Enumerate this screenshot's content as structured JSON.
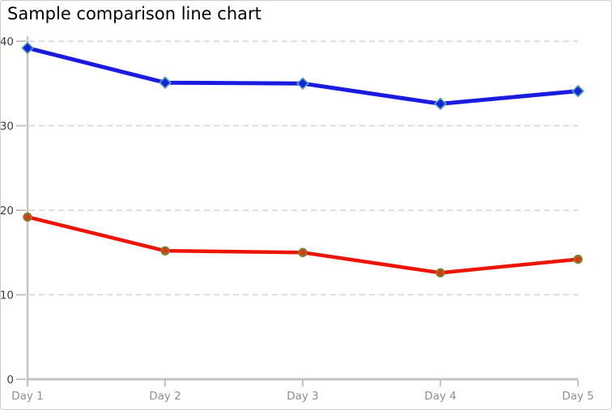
{
  "window": {
    "background_color": "#ffffff",
    "border_color": "#c9cdd1"
  },
  "chart_data": {
    "type": "line",
    "title": "Sample comparison line chart",
    "categories": [
      "Day 1",
      "Day 2",
      "Day 3",
      "Day 4",
      "Day 5"
    ],
    "series": [
      {
        "id": "series-1",
        "marker": "diamond",
        "line_color": "#1b1be0",
        "marker_fill": "#1126dd",
        "marker_outline": "#58a8ae",
        "values": [
          39.2,
          35.1,
          35.0,
          32.6,
          34.1
        ]
      },
      {
        "id": "series-2",
        "marker": "circle",
        "line_color": "#ee1405",
        "marker_fill": "#e03510",
        "marker_outline": "#7e8031",
        "values": [
          19.2,
          15.2,
          15.0,
          12.6,
          14.2
        ]
      }
    ],
    "xlabel": "",
    "ylabel": "",
    "ylim": [
      0,
      40
    ],
    "yticks": [
      0,
      10,
      20,
      30,
      40
    ],
    "grid": "horizontal-dashed",
    "legend": "none",
    "axis_color": "#c4c4c4",
    "gridline_color": "#cdd5dc",
    "ytick_label_color": "#3a3f44",
    "xtick_label_color": "#8b8f94"
  }
}
